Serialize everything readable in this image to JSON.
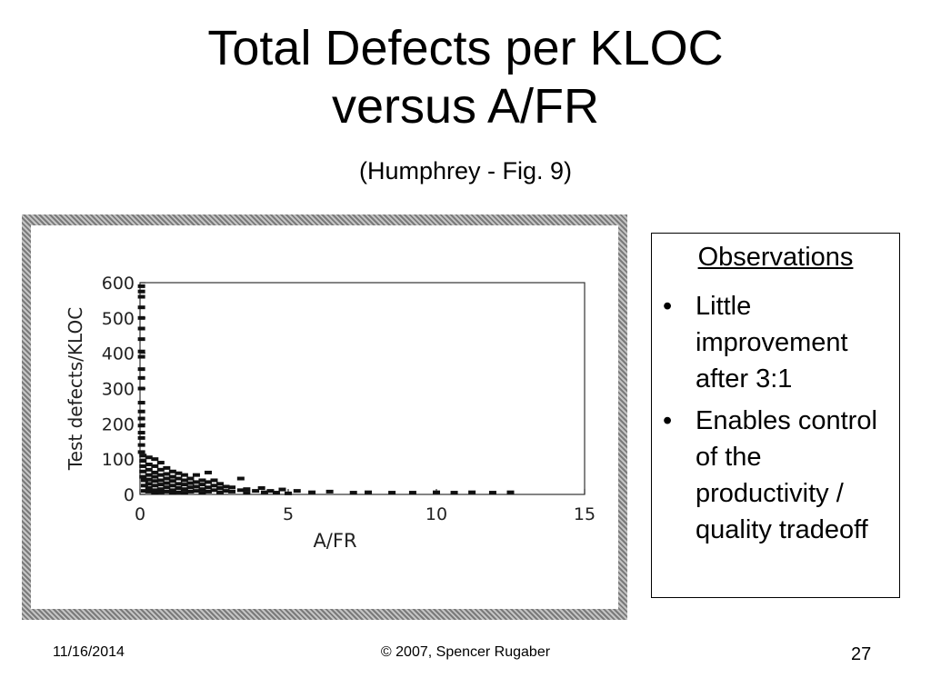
{
  "slide": {
    "title_line1": "Total Defects per KLOC",
    "title_line2": "versus A/FR",
    "subtitle": "(Humphrey - Fig. 9)"
  },
  "observations": {
    "heading": "Observations",
    "items": [
      {
        "bullet": "•",
        "text": "Little improvement after 3:1"
      },
      {
        "bullet": "•",
        "text": "Enables control of the productivity / quality tradeoff"
      }
    ]
  },
  "footer": {
    "date": "11/16/2014",
    "copyright": "© 2007, Spencer Rugaber",
    "page": "27"
  },
  "chart_data": {
    "type": "scatter",
    "xlabel": "A/FR",
    "ylabel": "Test defects/KLOC",
    "xlim": [
      0,
      15
    ],
    "ylim": [
      0,
      600
    ],
    "xticks": [
      0,
      5,
      10,
      15
    ],
    "yticks": [
      0,
      100,
      200,
      300,
      400,
      500,
      600
    ],
    "grid": false,
    "points": [
      {
        "x": 0.05,
        "y": 590
      },
      {
        "x": 0.05,
        "y": 575
      },
      {
        "x": 0.05,
        "y": 560
      },
      {
        "x": 0.05,
        "y": 530
      },
      {
        "x": 0.05,
        "y": 500
      },
      {
        "x": 0.05,
        "y": 470
      },
      {
        "x": 0.05,
        "y": 440
      },
      {
        "x": 0.05,
        "y": 405
      },
      {
        "x": 0.05,
        "y": 390
      },
      {
        "x": 0.05,
        "y": 355
      },
      {
        "x": 0.05,
        "y": 330
      },
      {
        "x": 0.05,
        "y": 300
      },
      {
        "x": 0.05,
        "y": 260
      },
      {
        "x": 0.05,
        "y": 235
      },
      {
        "x": 0.05,
        "y": 215
      },
      {
        "x": 0.05,
        "y": 195
      },
      {
        "x": 0.05,
        "y": 175
      },
      {
        "x": 0.05,
        "y": 160
      },
      {
        "x": 0.05,
        "y": 140
      },
      {
        "x": 0.05,
        "y": 120
      },
      {
        "x": 0.1,
        "y": 110
      },
      {
        "x": 0.1,
        "y": 95
      },
      {
        "x": 0.1,
        "y": 80
      },
      {
        "x": 0.1,
        "y": 65
      },
      {
        "x": 0.1,
        "y": 50
      },
      {
        "x": 0.15,
        "y": 40
      },
      {
        "x": 0.15,
        "y": 25
      },
      {
        "x": 0.15,
        "y": 10
      },
      {
        "x": 0.3,
        "y": 105
      },
      {
        "x": 0.3,
        "y": 85
      },
      {
        "x": 0.3,
        "y": 70
      },
      {
        "x": 0.3,
        "y": 55
      },
      {
        "x": 0.3,
        "y": 42
      },
      {
        "x": 0.3,
        "y": 30
      },
      {
        "x": 0.3,
        "y": 18
      },
      {
        "x": 0.3,
        "y": 8
      },
      {
        "x": 0.5,
        "y": 100
      },
      {
        "x": 0.5,
        "y": 80
      },
      {
        "x": 0.5,
        "y": 62
      },
      {
        "x": 0.5,
        "y": 50
      },
      {
        "x": 0.5,
        "y": 38
      },
      {
        "x": 0.5,
        "y": 25
      },
      {
        "x": 0.5,
        "y": 12
      },
      {
        "x": 0.5,
        "y": 5
      },
      {
        "x": 0.7,
        "y": 90
      },
      {
        "x": 0.7,
        "y": 70
      },
      {
        "x": 0.7,
        "y": 55
      },
      {
        "x": 0.7,
        "y": 40
      },
      {
        "x": 0.7,
        "y": 28
      },
      {
        "x": 0.7,
        "y": 15
      },
      {
        "x": 0.7,
        "y": 6
      },
      {
        "x": 0.9,
        "y": 75
      },
      {
        "x": 0.9,
        "y": 58
      },
      {
        "x": 0.9,
        "y": 45
      },
      {
        "x": 0.9,
        "y": 32
      },
      {
        "x": 0.9,
        "y": 20
      },
      {
        "x": 0.9,
        "y": 8
      },
      {
        "x": 1.1,
        "y": 65
      },
      {
        "x": 1.1,
        "y": 50
      },
      {
        "x": 1.1,
        "y": 38
      },
      {
        "x": 1.1,
        "y": 25
      },
      {
        "x": 1.1,
        "y": 12
      },
      {
        "x": 1.1,
        "y": 5
      },
      {
        "x": 1.3,
        "y": 60
      },
      {
        "x": 1.3,
        "y": 45
      },
      {
        "x": 1.3,
        "y": 30
      },
      {
        "x": 1.3,
        "y": 18
      },
      {
        "x": 1.3,
        "y": 6
      },
      {
        "x": 1.5,
        "y": 55
      },
      {
        "x": 1.5,
        "y": 40
      },
      {
        "x": 1.5,
        "y": 28
      },
      {
        "x": 1.5,
        "y": 15
      },
      {
        "x": 1.5,
        "y": 5
      },
      {
        "x": 1.7,
        "y": 45
      },
      {
        "x": 1.7,
        "y": 32
      },
      {
        "x": 1.7,
        "y": 20
      },
      {
        "x": 1.7,
        "y": 8
      },
      {
        "x": 1.9,
        "y": 55
      },
      {
        "x": 1.9,
        "y": 35
      },
      {
        "x": 1.9,
        "y": 22
      },
      {
        "x": 1.9,
        "y": 10
      },
      {
        "x": 2.1,
        "y": 40
      },
      {
        "x": 2.1,
        "y": 28
      },
      {
        "x": 2.1,
        "y": 15
      },
      {
        "x": 2.1,
        "y": 5
      },
      {
        "x": 2.3,
        "y": 62
      },
      {
        "x": 2.3,
        "y": 35
      },
      {
        "x": 2.3,
        "y": 20
      },
      {
        "x": 2.3,
        "y": 8
      },
      {
        "x": 2.5,
        "y": 40
      },
      {
        "x": 2.5,
        "y": 25
      },
      {
        "x": 2.5,
        "y": 12
      },
      {
        "x": 2.7,
        "y": 30
      },
      {
        "x": 2.7,
        "y": 18
      },
      {
        "x": 2.7,
        "y": 6
      },
      {
        "x": 2.9,
        "y": 22
      },
      {
        "x": 2.9,
        "y": 10
      },
      {
        "x": 3.1,
        "y": 20
      },
      {
        "x": 3.1,
        "y": 8
      },
      {
        "x": 3.4,
        "y": 45
      },
      {
        "x": 3.4,
        "y": 12
      },
      {
        "x": 3.6,
        "y": 15
      },
      {
        "x": 3.6,
        "y": 5
      },
      {
        "x": 3.9,
        "y": 10
      },
      {
        "x": 4.1,
        "y": 18
      },
      {
        "x": 4.2,
        "y": 6
      },
      {
        "x": 4.4,
        "y": 10
      },
      {
        "x": 4.6,
        "y": 5
      },
      {
        "x": 4.8,
        "y": 14
      },
      {
        "x": 5.0,
        "y": 3
      },
      {
        "x": 5.3,
        "y": 10
      },
      {
        "x": 5.8,
        "y": 6
      },
      {
        "x": 6.4,
        "y": 8
      },
      {
        "x": 7.2,
        "y": 5
      },
      {
        "x": 7.7,
        "y": 6
      },
      {
        "x": 8.5,
        "y": 5
      },
      {
        "x": 9.2,
        "y": 5
      },
      {
        "x": 10.0,
        "y": 6
      },
      {
        "x": 10.6,
        "y": 5
      },
      {
        "x": 11.2,
        "y": 6
      },
      {
        "x": 11.9,
        "y": 5
      },
      {
        "x": 12.5,
        "y": 6
      }
    ]
  }
}
